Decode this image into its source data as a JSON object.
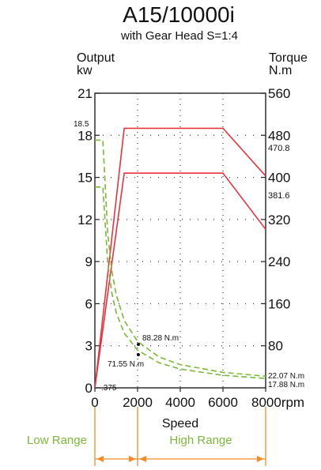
{
  "chart_data": {
    "type": "line",
    "title": "A15/10000i",
    "subtitle": "with Gear Head S=1:4",
    "left_axis_label": [
      "Output",
      "kw"
    ],
    "right_axis_label": [
      "Torque",
      "N.m"
    ],
    "xlabel": "Speed",
    "x_unit": "rpm",
    "x_ticks": [
      "0",
      "2000",
      "4000",
      "6000",
      "8000"
    ],
    "left_ticks": [
      "21",
      "18",
      "15",
      "12",
      "9",
      "6",
      "3",
      "0"
    ],
    "right_ticks": [
      "560",
      "480",
      "400",
      "320",
      "240",
      "160",
      "80"
    ],
    "xlim": [
      0,
      8000
    ],
    "ylim_left": [
      0,
      21
    ],
    "ylim_right": [
      0,
      560
    ],
    "grid": true,
    "series": [
      {
        "axis": "left",
        "style": "solid",
        "color": "#e8333f",
        "x": [
          0,
          1375,
          6000,
          8000
        ],
        "y": [
          0,
          18.5,
          18.5,
          15.1
        ]
      },
      {
        "axis": "left",
        "style": "solid",
        "color": "#e8333f",
        "x": [
          0,
          1375,
          6000,
          8000
        ],
        "y": [
          0,
          15.3,
          15.3,
          11.3
        ]
      },
      {
        "axis": "right",
        "style": "dashed",
        "color": "#7bb838",
        "x": [
          0,
          375,
          600,
          800,
          1000,
          1375,
          2000,
          3000,
          4000,
          6000,
          8000
        ],
        "y": [
          470.8,
          470.8,
          294,
          221,
          177,
          128,
          88.28,
          58.9,
          44.1,
          29.4,
          22.07
        ]
      },
      {
        "axis": "right",
        "style": "dashed",
        "color": "#7bb838",
        "x": [
          0,
          375,
          600,
          800,
          1000,
          1375,
          2000,
          3000,
          4000,
          6000,
          8000
        ],
        "y": [
          381.6,
          381.6,
          238,
          179,
          143,
          104,
          71.55,
          47.7,
          35.8,
          23.8,
          17.88
        ]
      }
    ],
    "annotations": {
      "left_extra_tick": "18.5",
      "right_extra_tick_1": "470.8",
      "right_extra_tick_2": "381.6",
      "point_label_1": "88.28 N.m",
      "point_label_2": "71.55 N.m",
      "x_extra_label": ".375",
      "end_label_1": "22.07 N.m",
      "end_label_2": "17.88 N.m"
    },
    "ranges": [
      {
        "label": "Low Range",
        "from": 0,
        "to": 2000
      },
      {
        "label": "High Range",
        "from": 2000,
        "to": 8000
      }
    ]
  }
}
